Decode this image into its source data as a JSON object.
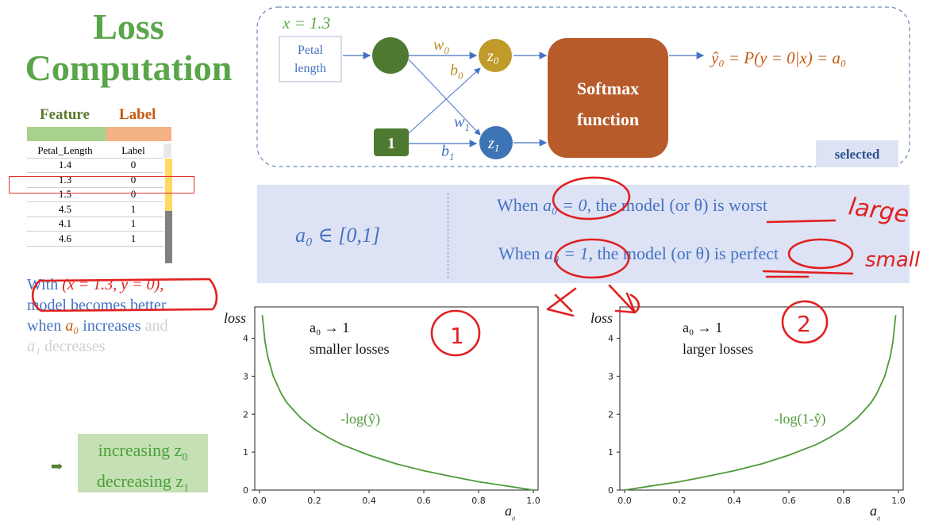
{
  "title_line1": "Loss",
  "title_line2": "Computation",
  "table": {
    "feature_header": "Feature",
    "label_header": "Label",
    "col1": "Petal_Length",
    "col2": "Label",
    "rows": [
      [
        "1.4",
        "0"
      ],
      [
        "1.3",
        "0"
      ],
      [
        "1.5",
        "0"
      ],
      [
        "4.5",
        "1"
      ],
      [
        "4.1",
        "1"
      ],
      [
        "4.6",
        "1"
      ]
    ]
  },
  "diagram": {
    "x_value": "x = 1.3",
    "input_label_line1": "Petal",
    "input_label_line2": "length",
    "bias_node": "1",
    "w0": "w",
    "w0_sub": "0",
    "b0": "b",
    "b0_sub": "0",
    "w1": "w",
    "w1_sub": "1",
    "b1": "b",
    "b1_sub": "1",
    "z0": "z",
    "z0_sub": "0",
    "z1": "z",
    "z1_sub": "1",
    "softmax_line1": "Softmax",
    "softmax_line2": "function",
    "output": "ŷ₀ = P(y = 0|x) = a₀",
    "selected": "selected"
  },
  "info": {
    "range": "a₀ ∈ [0,1]",
    "worst_pre": "When ",
    "worst_math": "a₀ = 0",
    "worst_post": ", the model (or θ) is worst",
    "perfect_pre": "When ",
    "perfect_math": "a₀ = 1",
    "perfect_post": ", the model (or θ) is perfect"
  },
  "left_text": {
    "with": "With ",
    "pair": "(x = 1.3, y = 0),",
    "line2": "model becomes better",
    "line3_pre": "when ",
    "line3_math": "a₀",
    "line3_mid": " increases",
    "line3_post": " and",
    "line4_math": "a₁",
    "line4_post": " decreases"
  },
  "green_box": {
    "arrow": "➡",
    "line1": "increasing z",
    "line1_sub": "0",
    "line2": "decreasing z",
    "line2_sub": "1"
  },
  "colors": {
    "green": "#5aa54a",
    "orange": "#c55a11",
    "blue": "#4472c4",
    "softmax": "#b85b2b",
    "z0_node": "#c09b2a",
    "z1_node": "#3d74b5",
    "input_node": "#4d7a30",
    "panel": "#dde3f4",
    "ink": "#e02020"
  },
  "handwritten": {
    "large": "large",
    "small": "small",
    "circle1": "1",
    "circle2": "2"
  },
  "chart_data": [
    {
      "type": "line",
      "ylabel": "loss",
      "xlabel": "a₀",
      "xlim": [
        0.0,
        1.0
      ],
      "ylim": [
        0,
        4.7
      ],
      "xticks": [
        "0.0",
        "0.2",
        "0.4",
        "0.6",
        "0.8",
        "1.0"
      ],
      "yticks": [
        "0",
        "1",
        "2",
        "3",
        "4"
      ],
      "series": [
        {
          "name": "-log(ŷ)",
          "x": [
            0.01,
            0.02,
            0.03,
            0.05,
            0.08,
            0.1,
            0.15,
            0.2,
            0.25,
            0.3,
            0.4,
            0.5,
            0.6,
            0.7,
            0.8,
            0.9,
            1.0
          ],
          "y": [
            4.61,
            3.91,
            3.51,
            3.0,
            2.53,
            2.3,
            1.9,
            1.61,
            1.39,
            1.2,
            0.92,
            0.69,
            0.51,
            0.36,
            0.22,
            0.11,
            0.0
          ]
        }
      ],
      "annotation_line1": "a₀ → 1",
      "annotation_line2": "smaller losses",
      "curve_label": "-log(ŷ)"
    },
    {
      "type": "line",
      "ylabel": "loss",
      "xlabel": "a₀",
      "xlim": [
        0.0,
        1.0
      ],
      "ylim": [
        0,
        4.7
      ],
      "xticks": [
        "0.0",
        "0.2",
        "0.4",
        "0.6",
        "0.8",
        "1.0"
      ],
      "yticks": [
        "0",
        "1",
        "2",
        "3",
        "4"
      ],
      "series": [
        {
          "name": "-log(1-ŷ)",
          "x": [
            0.0,
            0.1,
            0.2,
            0.3,
            0.4,
            0.5,
            0.6,
            0.7,
            0.75,
            0.8,
            0.85,
            0.9,
            0.92,
            0.95,
            0.97,
            0.98,
            0.99
          ],
          "y": [
            0.0,
            0.11,
            0.22,
            0.36,
            0.51,
            0.69,
            0.92,
            1.2,
            1.39,
            1.61,
            1.9,
            2.3,
            2.53,
            3.0,
            3.51,
            3.91,
            4.61
          ]
        }
      ],
      "annotation_line1": "a₀ → 1",
      "annotation_line2": "larger losses",
      "curve_label": "-log(1-ŷ)"
    }
  ]
}
